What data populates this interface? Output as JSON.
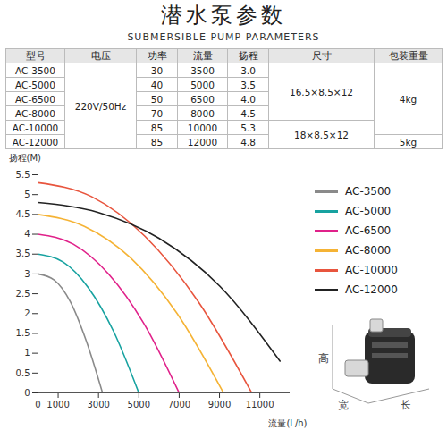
{
  "title": "潜水泵参数",
  "subtitle": "SUBMERSIBLE PUMP PARAMETERS",
  "table": {
    "header": [
      "型号",
      "电压",
      "功率",
      "流量",
      "扬程",
      "尺寸",
      "包装重量"
    ],
    "rows": [
      [
        "AC-3500",
        "220V/50Hz",
        "30",
        "3500",
        "3.0",
        "16.5×8.5×12",
        "4kg"
      ],
      [
        "AC-5000",
        "220V/50Hz",
        "40",
        "5000",
        "3.5",
        "16.5×8.5×12",
        "4kg"
      ],
      [
        "AC-6500",
        "220V/50Hz",
        "50",
        "6500",
        "4.0",
        "16.5×8.5×12",
        "4kg"
      ],
      [
        "AC-8000",
        "220V/50Hz",
        "70",
        "8000",
        "4.5",
        "16.5×8.5×12",
        "4kg"
      ],
      [
        "AC-10000",
        "220V/50Hz",
        "85",
        "10000",
        "5.3",
        "18×8.5×12",
        "4kg"
      ],
      [
        "AC-12000",
        "220V/50Hz",
        "85",
        "12000",
        "4.8",
        "18×8.5×12",
        "5kg"
      ]
    ]
  },
  "chart_data": {
    "type": "line",
    "x_label": "流量(L/h)",
    "y_label": "扬程(M)",
    "xlim": [
      0,
      12500
    ],
    "xticks": [
      0,
      1000,
      3000,
      5000,
      7000,
      9000,
      11000
    ],
    "ylim": [
      0,
      5.5
    ],
    "yticks": [
      0,
      0.5,
      1,
      1.5,
      2,
      2.5,
      3,
      3.5,
      4,
      4.5,
      5,
      5.5
    ],
    "grid": false,
    "legend": "right",
    "series": [
      {
        "name": "AC-3500",
        "color": "#8a8a8a",
        "x": [
          0,
          800,
          1600,
          2400,
          3200
        ],
        "values": [
          3.0,
          2.85,
          2.3,
          1.3,
          0
        ]
      },
      {
        "name": "AC-5000",
        "color": "#17a2a0",
        "x": [
          0,
          1250,
          2500,
          3750,
          5000
        ],
        "values": [
          3.5,
          3.3,
          2.65,
          1.55,
          0
        ]
      },
      {
        "name": "AC-6500",
        "color": "#e0218a",
        "x": [
          0,
          1750,
          3500,
          5250,
          7000
        ],
        "values": [
          4.0,
          3.75,
          3.0,
          1.75,
          0
        ]
      },
      {
        "name": "AC-8000",
        "color": "#f5b335",
        "x": [
          0,
          2300,
          4600,
          6900,
          9200
        ],
        "values": [
          4.5,
          4.2,
          3.4,
          2.0,
          0
        ]
      },
      {
        "name": "AC-10000",
        "color": "#e8553e",
        "x": [
          0,
          2650,
          5300,
          7950,
          10600
        ],
        "values": [
          5.3,
          4.95,
          3.95,
          2.3,
          0
        ]
      },
      {
        "name": "AC-12000",
        "color": "#222222",
        "x": [
          0,
          3000,
          6000,
          9000,
          12000
        ],
        "values": [
          4.8,
          4.55,
          3.9,
          2.7,
          0.8
        ]
      }
    ]
  },
  "pump_dims": {
    "height": "高",
    "width": "宽",
    "length": "长"
  }
}
